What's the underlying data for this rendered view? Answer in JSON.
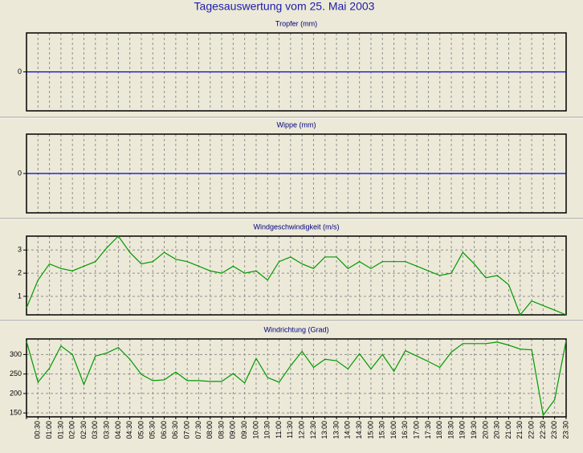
{
  "title": "Tagesauswertung vom 25. Mai 2003",
  "chart_data": [
    {
      "type": "line",
      "title": "Tropfer (mm)",
      "ylim": [
        -1,
        1
      ],
      "yticks": [
        0
      ],
      "grid": true,
      "series": [
        {
          "color": "#0000cc",
          "values": [
            0,
            0,
            0,
            0,
            0,
            0,
            0,
            0,
            0,
            0,
            0,
            0,
            0,
            0,
            0,
            0,
            0,
            0,
            0,
            0,
            0,
            0,
            0,
            0,
            0,
            0,
            0,
            0,
            0,
            0,
            0,
            0,
            0,
            0,
            0,
            0,
            0,
            0,
            0,
            0,
            0,
            0,
            0,
            0,
            0,
            0,
            0,
            0
          ]
        }
      ]
    },
    {
      "type": "line",
      "title": "Wippe (mm)",
      "ylim": [
        -1,
        1
      ],
      "yticks": [
        0
      ],
      "grid": true,
      "series": [
        {
          "color": "#0000cc",
          "values": [
            0,
            0,
            0,
            0,
            0,
            0,
            0,
            0,
            0,
            0,
            0,
            0,
            0,
            0,
            0,
            0,
            0,
            0,
            0,
            0,
            0,
            0,
            0,
            0,
            0,
            0,
            0,
            0,
            0,
            0,
            0,
            0,
            0,
            0,
            0,
            0,
            0,
            0,
            0,
            0,
            0,
            0,
            0,
            0,
            0,
            0,
            0,
            0
          ]
        }
      ]
    },
    {
      "type": "line",
      "title": "Windgeschwindigkeit (m/s)",
      "ylim": [
        0.2,
        3.6
      ],
      "yticks": [
        1,
        2,
        3
      ],
      "grid": true,
      "series": [
        {
          "color": "#009900",
          "values": [
            0.5,
            1.7,
            2.4,
            2.2,
            2.1,
            2.3,
            2.5,
            3.1,
            3.6,
            2.9,
            2.4,
            2.5,
            2.9,
            2.6,
            2.5,
            2.3,
            2.1,
            2.0,
            2.3,
            2.0,
            2.1,
            1.7,
            2.5,
            2.7,
            2.4,
            2.2,
            2.7,
            2.7,
            2.2,
            2.5,
            2.2,
            2.5,
            2.5,
            2.5,
            2.3,
            2.1,
            1.9,
            2.0,
            2.9,
            2.4,
            1.8,
            1.9,
            1.5,
            0.2,
            0.8,
            0.6,
            0.4,
            0.2
          ]
        }
      ]
    },
    {
      "type": "line",
      "title": "Windrichtung (Grad)",
      "ylim": [
        140,
        340
      ],
      "yticks": [
        150,
        200,
        250,
        300
      ],
      "grid": true,
      "categories": [
        null,
        "00:30",
        "01:00",
        "01:30",
        "02:00",
        "02:30",
        "03:00",
        "03:30",
        "04:00",
        "04:30",
        "05:00",
        "05:30",
        "06:00",
        "06:30",
        "07:00",
        "07:30",
        "08:00",
        "08:30",
        "09:00",
        "09:30",
        "10:00",
        "10:30",
        "11:00",
        "11:30",
        "12:00",
        "12:30",
        "13:00",
        "13:30",
        "14:00",
        "14:30",
        "15:00",
        "15:30",
        "16:00",
        "16:30",
        "17:00",
        "17:30",
        "18:00",
        "18:30",
        "19:00",
        "19:30",
        "20:00",
        "20:30",
        "21:00",
        "21:30",
        "22:00",
        "22:30",
        "23:00",
        "23:30"
      ],
      "series": [
        {
          "color": "#009900",
          "values": [
            334,
            229,
            265,
            322,
            300,
            223,
            296,
            304,
            318,
            288,
            249,
            233,
            235,
            255,
            233,
            233,
            231,
            231,
            251,
            227,
            290,
            241,
            229,
            271,
            308,
            267,
            288,
            284,
            263,
            302,
            263,
            300,
            257,
            310,
            296,
            282,
            267,
            306,
            328,
            328,
            328,
            332,
            324,
            314,
            312,
            144,
            184,
            336
          ]
        }
      ]
    }
  ]
}
